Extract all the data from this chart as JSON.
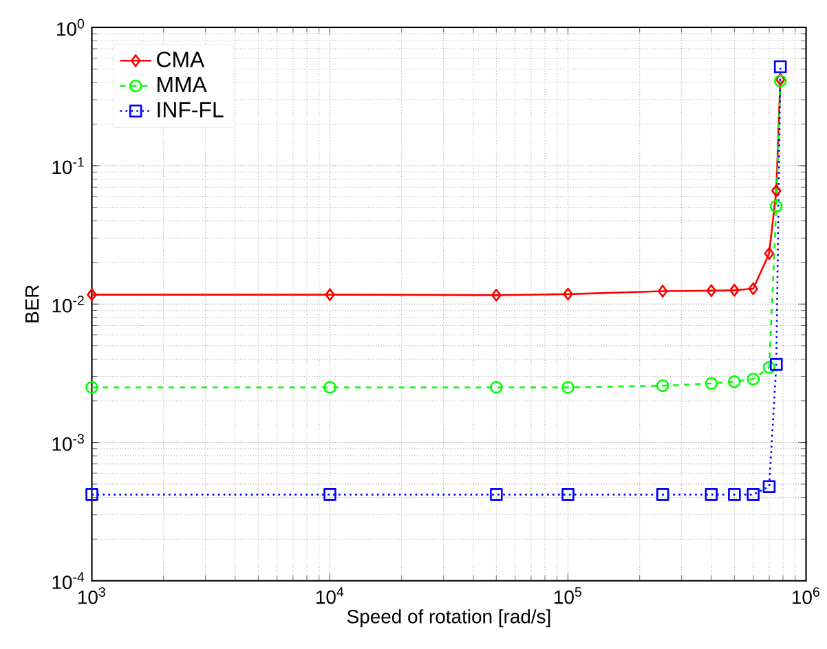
{
  "chart_data": {
    "type": "line",
    "xlabel": "Speed of rotation [rad/s]",
    "ylabel": "BER",
    "log": "xy",
    "grid": true,
    "legend": "top left",
    "xlim": [
      1000,
      1000000
    ],
    "ylim": [
      0.0001,
      1
    ],
    "xticks": [
      {
        "value": 1000,
        "label": "10$^{3}$"
      },
      {
        "value": 10000,
        "label": "10$^{4}$"
      },
      {
        "value": 100000,
        "label": "10$^{5}$"
      },
      {
        "value": 1000000,
        "label": "10$^{6}$"
      }
    ],
    "yticks": [
      {
        "value": 0.0001,
        "label": "10$^{-4}$"
      },
      {
        "value": 0.001,
        "label": "10$^{-3}$"
      },
      {
        "value": 0.01,
        "label": "10$^{-2}$"
      },
      {
        "value": 0.1,
        "label": "10$^{-1}$"
      },
      {
        "value": 1,
        "label": "10$^{0}$"
      }
    ],
    "x": [
      1000,
      10000,
      50000,
      100000,
      250000,
      400000,
      500000,
      600000,
      700000,
      750000,
      780000
    ],
    "series": [
      {
        "name": "CMA",
        "color": "#ff0000",
        "marker": "diamond",
        "line_style": "solid",
        "values": [
          0.0117,
          0.0117,
          0.0116,
          0.0118,
          0.0124,
          0.0125,
          0.0126,
          0.0129,
          0.0232,
          0.066,
          0.42
        ]
      },
      {
        "name": "MMA",
        "color": "#00ff00",
        "marker": "circle",
        "line_style": "dashed",
        "values": [
          0.0025,
          0.0025,
          0.0025,
          0.0025,
          0.00257,
          0.00267,
          0.00275,
          0.00287,
          0.00348,
          0.0508,
          0.41
        ]
      },
      {
        "name": "INF-FL",
        "color": "#0000ff",
        "marker": "square",
        "line_style": "dotted",
        "values": [
          0.00042,
          0.00042,
          0.00042,
          0.00042,
          0.00042,
          0.00042,
          0.00042,
          0.00042,
          0.00048,
          0.00366,
          0.52
        ]
      }
    ]
  }
}
